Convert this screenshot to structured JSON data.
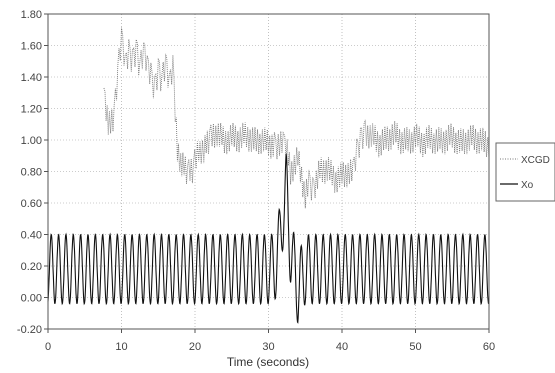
{
  "chart_data": {
    "type": "line",
    "title": "",
    "xlabel": "Time (seconds)",
    "ylabel": "",
    "xlim": [
      0,
      60
    ],
    "ylim": [
      -0.2,
      1.8
    ],
    "x_ticks": [
      "0",
      "10",
      "20",
      "30",
      "40",
      "50",
      "60"
    ],
    "y_ticks": [
      "1.80",
      "1.60",
      "1.40",
      "1.20",
      "1.00",
      "0.80",
      "0.60",
      "0.40",
      "0.20",
      "0.00",
      "-0.20"
    ],
    "grid": true,
    "legend_position": "right",
    "colors": {
      "series_1": "#777777",
      "series_2": "#111111"
    },
    "series": [
      {
        "name": "XCGD",
        "style": "dotted",
        "x": [
          0,
          7.3,
          7.6,
          8.2,
          9.0,
          9.5,
          10.0,
          10.5,
          11.0,
          11.5,
          12.0,
          12.5,
          13.0,
          13.5,
          14.0,
          14.5,
          15.0,
          15.5,
          16.0,
          16.5,
          17.0,
          17.6,
          18.2,
          19.0,
          19.8,
          20.5,
          21.2,
          22.0,
          23.0,
          24.0,
          25.0,
          26.0,
          27.0,
          28.0,
          29.0,
          30.0,
          30.8,
          31.5,
          32.0,
          32.4,
          33.0,
          34.0,
          35.0,
          35.5,
          36.0,
          37.0,
          38.0,
          39.0,
          40.0,
          41.0,
          41.5,
          42.0,
          42.5,
          43.0,
          44.0,
          45.0,
          46.0,
          47.0,
          48.0,
          49.0,
          50.0,
          51.0,
          52.0,
          53.0,
          54.0,
          55.0,
          56.0,
          57.0,
          58.0,
          59.0,
          60.0
        ],
        "y": [
          null,
          null,
          1.33,
          1.08,
          1.16,
          1.42,
          1.64,
          1.45,
          1.55,
          1.5,
          1.58,
          1.45,
          1.55,
          1.45,
          1.4,
          1.32,
          1.45,
          1.37,
          1.48,
          1.33,
          1.45,
          0.92,
          0.85,
          0.78,
          0.82,
          0.95,
          0.93,
          1.0,
          1.05,
          0.99,
          1.02,
          1.01,
          1.03,
          0.99,
          1.0,
          0.98,
          0.96,
          0.97,
          0.96,
          0.96,
          0.8,
          0.88,
          0.65,
          0.72,
          0.68,
          0.8,
          0.82,
          0.75,
          0.77,
          0.8,
          0.78,
          0.92,
          1.0,
          1.05,
          1.03,
          0.98,
          1.0,
          1.04,
          1.0,
          0.99,
          1.02,
          0.98,
          1.01,
          0.99,
          1.0,
          1.02,
          0.98,
          1.0,
          1.01,
          0.99,
          0.97
        ]
      },
      {
        "name": "Xo",
        "style": "solid",
        "x": [
          0,
          7.3,
          7.6,
          8.2,
          9.0,
          9.5,
          10.0,
          10.5,
          11.0,
          11.5,
          12.0,
          12.5,
          13.0,
          13.5,
          14.0,
          14.5,
          15.0,
          15.5,
          16.0,
          16.5,
          17.0,
          17.6,
          18.2,
          19.0,
          19.8,
          20.5,
          21.2,
          22.0,
          23.0,
          24.0,
          25.0,
          26.0,
          27.0,
          28.0,
          29.0,
          30.0,
          30.8,
          31.5,
          32.0,
          32.4,
          33.0,
          34.0,
          35.0,
          35.5,
          36.0,
          37.0,
          38.0,
          39.0,
          40.0,
          41.0,
          41.5,
          42.0,
          42.5,
          43.0,
          44.0,
          45.0,
          46.0,
          47.0,
          48.0,
          49.0,
          50.0,
          51.0,
          52.0,
          53.0,
          54.0,
          55.0,
          56.0,
          57.0,
          58.0,
          59.0,
          60.0
        ],
        "y": [
          0.18,
          0.18,
          0.18,
          0.18,
          0.18,
          0.18,
          0.18,
          0.18,
          0.18,
          0.18,
          0.18,
          0.18,
          0.18,
          0.18,
          0.18,
          0.18,
          0.18,
          0.18,
          0.18,
          0.18,
          0.18,
          0.18,
          0.18,
          0.18,
          0.18,
          0.18,
          0.18,
          0.18,
          0.18,
          0.18,
          0.18,
          0.18,
          0.18,
          0.18,
          0.18,
          0.18,
          0.18,
          0.35,
          0.55,
          0.7,
          0.3,
          0.05,
          0.18,
          0.18,
          0.18,
          0.18,
          0.18,
          0.18,
          0.18,
          0.18,
          0.18,
          0.18,
          0.18,
          0.18,
          0.18,
          0.18,
          0.18,
          0.18,
          0.18,
          0.18,
          0.18,
          0.18,
          0.18,
          0.18,
          0.18,
          0.18,
          0.18,
          0.18,
          0.18,
          0.18,
          0.18
        ],
        "oscillation": {
          "min": -0.04,
          "max": 0.4,
          "cycles_per_second": 1.0
        }
      }
    ]
  }
}
